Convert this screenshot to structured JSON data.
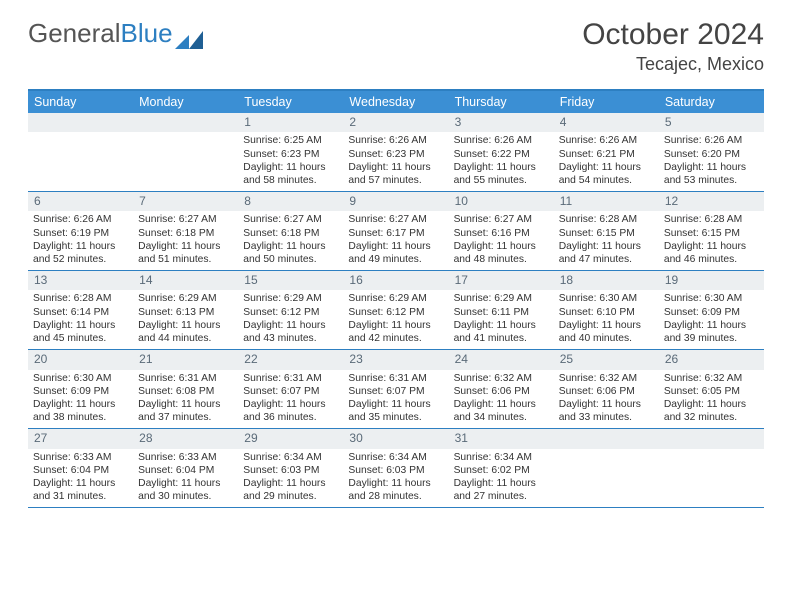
{
  "logo": {
    "text1": "General",
    "text2": "Blue"
  },
  "title": "October 2024",
  "location": "Tecajec, Mexico",
  "colors": {
    "header_bg": "#3b8fd4",
    "border": "#2d7fc1",
    "daynum_bg": "#eceff1",
    "daynum_color": "#5a6a78"
  },
  "dow": [
    "Sunday",
    "Monday",
    "Tuesday",
    "Wednesday",
    "Thursday",
    "Friday",
    "Saturday"
  ],
  "weeks": [
    [
      null,
      null,
      {
        "n": "1",
        "sr": "6:25 AM",
        "ss": "6:23 PM",
        "dl": "11 hours and 58 minutes."
      },
      {
        "n": "2",
        "sr": "6:26 AM",
        "ss": "6:23 PM",
        "dl": "11 hours and 57 minutes."
      },
      {
        "n": "3",
        "sr": "6:26 AM",
        "ss": "6:22 PM",
        "dl": "11 hours and 55 minutes."
      },
      {
        "n": "4",
        "sr": "6:26 AM",
        "ss": "6:21 PM",
        "dl": "11 hours and 54 minutes."
      },
      {
        "n": "5",
        "sr": "6:26 AM",
        "ss": "6:20 PM",
        "dl": "11 hours and 53 minutes."
      }
    ],
    [
      {
        "n": "6",
        "sr": "6:26 AM",
        "ss": "6:19 PM",
        "dl": "11 hours and 52 minutes."
      },
      {
        "n": "7",
        "sr": "6:27 AM",
        "ss": "6:18 PM",
        "dl": "11 hours and 51 minutes."
      },
      {
        "n": "8",
        "sr": "6:27 AM",
        "ss": "6:18 PM",
        "dl": "11 hours and 50 minutes."
      },
      {
        "n": "9",
        "sr": "6:27 AM",
        "ss": "6:17 PM",
        "dl": "11 hours and 49 minutes."
      },
      {
        "n": "10",
        "sr": "6:27 AM",
        "ss": "6:16 PM",
        "dl": "11 hours and 48 minutes."
      },
      {
        "n": "11",
        "sr": "6:28 AM",
        "ss": "6:15 PM",
        "dl": "11 hours and 47 minutes."
      },
      {
        "n": "12",
        "sr": "6:28 AM",
        "ss": "6:15 PM",
        "dl": "11 hours and 46 minutes."
      }
    ],
    [
      {
        "n": "13",
        "sr": "6:28 AM",
        "ss": "6:14 PM",
        "dl": "11 hours and 45 minutes."
      },
      {
        "n": "14",
        "sr": "6:29 AM",
        "ss": "6:13 PM",
        "dl": "11 hours and 44 minutes."
      },
      {
        "n": "15",
        "sr": "6:29 AM",
        "ss": "6:12 PM",
        "dl": "11 hours and 43 minutes."
      },
      {
        "n": "16",
        "sr": "6:29 AM",
        "ss": "6:12 PM",
        "dl": "11 hours and 42 minutes."
      },
      {
        "n": "17",
        "sr": "6:29 AM",
        "ss": "6:11 PM",
        "dl": "11 hours and 41 minutes."
      },
      {
        "n": "18",
        "sr": "6:30 AM",
        "ss": "6:10 PM",
        "dl": "11 hours and 40 minutes."
      },
      {
        "n": "19",
        "sr": "6:30 AM",
        "ss": "6:09 PM",
        "dl": "11 hours and 39 minutes."
      }
    ],
    [
      {
        "n": "20",
        "sr": "6:30 AM",
        "ss": "6:09 PM",
        "dl": "11 hours and 38 minutes."
      },
      {
        "n": "21",
        "sr": "6:31 AM",
        "ss": "6:08 PM",
        "dl": "11 hours and 37 minutes."
      },
      {
        "n": "22",
        "sr": "6:31 AM",
        "ss": "6:07 PM",
        "dl": "11 hours and 36 minutes."
      },
      {
        "n": "23",
        "sr": "6:31 AM",
        "ss": "6:07 PM",
        "dl": "11 hours and 35 minutes."
      },
      {
        "n": "24",
        "sr": "6:32 AM",
        "ss": "6:06 PM",
        "dl": "11 hours and 34 minutes."
      },
      {
        "n": "25",
        "sr": "6:32 AM",
        "ss": "6:06 PM",
        "dl": "11 hours and 33 minutes."
      },
      {
        "n": "26",
        "sr": "6:32 AM",
        "ss": "6:05 PM",
        "dl": "11 hours and 32 minutes."
      }
    ],
    [
      {
        "n": "27",
        "sr": "6:33 AM",
        "ss": "6:04 PM",
        "dl": "11 hours and 31 minutes."
      },
      {
        "n": "28",
        "sr": "6:33 AM",
        "ss": "6:04 PM",
        "dl": "11 hours and 30 minutes."
      },
      {
        "n": "29",
        "sr": "6:34 AM",
        "ss": "6:03 PM",
        "dl": "11 hours and 29 minutes."
      },
      {
        "n": "30",
        "sr": "6:34 AM",
        "ss": "6:03 PM",
        "dl": "11 hours and 28 minutes."
      },
      {
        "n": "31",
        "sr": "6:34 AM",
        "ss": "6:02 PM",
        "dl": "11 hours and 27 minutes."
      },
      null,
      null
    ]
  ],
  "labels": {
    "sunrise": "Sunrise:",
    "sunset": "Sunset:",
    "daylight": "Daylight:"
  }
}
